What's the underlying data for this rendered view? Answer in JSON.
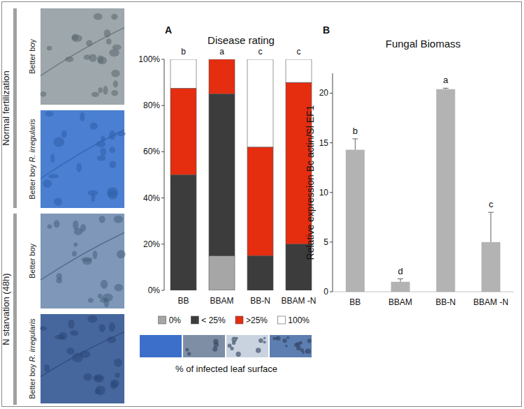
{
  "photos": {
    "groups": [
      {
        "label": "Normal fertilization",
        "images": [
          {
            "label": "Better boy"
          },
          {
            "label": "Better boy",
            "species": "R. irregularis"
          }
        ]
      },
      {
        "label": "N starvation (48h)",
        "images": [
          {
            "label": "Better boy"
          },
          {
            "label": "Better boy",
            "species": "R. irregularis"
          }
        ]
      }
    ]
  },
  "chart_data": [
    {
      "panel": "A",
      "type": "bar",
      "stacked": true,
      "title": "Disease rating",
      "categories": [
        "BB",
        "BBAM",
        "BB-N",
        "BBAM -N"
      ],
      "series": [
        {
          "name": "0%",
          "color": "#a6a6a6",
          "values": [
            0,
            15,
            0,
            0
          ]
        },
        {
          "name": "< 25%",
          "color": "#3c3c3c",
          "values": [
            50,
            70,
            15,
            20
          ]
        },
        {
          "name": ">25%",
          "color": "#e52d10",
          "values": [
            37.5,
            15,
            47,
            70
          ]
        },
        {
          "name": "100%",
          "color": "#ffffff",
          "values": [
            12.5,
            0,
            38,
            10
          ]
        }
      ],
      "ylim": [
        0,
        100
      ],
      "yticks": [
        {
          "value": 0,
          "label": "0%"
        },
        {
          "value": 20,
          "label": "20%"
        },
        {
          "value": 40,
          "label": "40%"
        },
        {
          "value": 60,
          "label": "60%"
        },
        {
          "value": 80,
          "label": "80%"
        },
        {
          "value": 100,
          "label": "100%"
        }
      ],
      "annotations": [
        "b",
        "a",
        "c",
        "c"
      ],
      "legend": "bottom",
      "legend_title": "% of infected leaf surface",
      "grid": false
    },
    {
      "panel": "B",
      "type": "bar",
      "title": "Fungal Biomass",
      "ylabel": "Relative expression Bc actin/Sl EF1",
      "categories": [
        "BB",
        "BBAM",
        "BB-N",
        "BBAM -N"
      ],
      "values": [
        14.3,
        1.0,
        20.4,
        5.0
      ],
      "errors": [
        1.1,
        0.3,
        0.1,
        3.0
      ],
      "color": "#b3b3b3",
      "ylim": [
        0,
        22
      ],
      "yticks": [
        0,
        5,
        10,
        15,
        20
      ],
      "annotations": [
        "b",
        "d",
        "a",
        "c"
      ],
      "grid": false
    }
  ]
}
